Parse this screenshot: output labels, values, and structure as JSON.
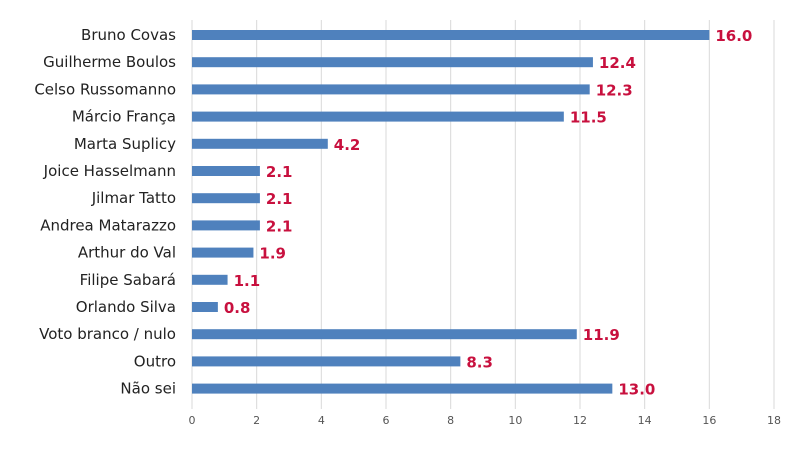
{
  "colors": {
    "bar": "#4f81bd",
    "value_label": "#c8103e",
    "grid": "#d9d9d9"
  },
  "chart_data": {
    "type": "bar",
    "orientation": "horizontal",
    "categories": [
      "Bruno Covas",
      "Guilherme Boulos",
      "Celso Russomanno",
      "Márcio França",
      "Marta Suplicy",
      "Joice Hasselmann",
      "Jilmar Tatto",
      "Andrea Matarazzo",
      "Arthur do Val",
      "Filipe Sabará",
      "Orlando Silva",
      "Voto branco / nulo",
      "Outro",
      "Não sei"
    ],
    "values": [
      16.0,
      12.4,
      12.3,
      11.5,
      4.2,
      2.1,
      2.1,
      2.1,
      1.9,
      1.1,
      0.8,
      11.9,
      8.3,
      13.0
    ],
    "value_labels": [
      "16.0",
      "12.4",
      "12.3",
      "11.5",
      "4.2",
      "2.1",
      "2.1",
      "2.1",
      "1.9",
      "1.1",
      "0.8",
      "11.9",
      "8.3",
      "13.0"
    ],
    "xlim": [
      0,
      18
    ],
    "xticks": [
      0,
      2,
      4,
      6,
      8,
      10,
      12,
      14,
      16,
      18
    ],
    "grid": true,
    "title": "",
    "xlabel": "",
    "ylabel": ""
  }
}
